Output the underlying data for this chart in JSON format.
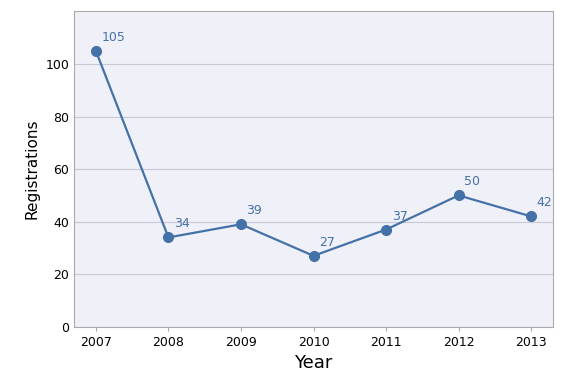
{
  "years": [
    2007,
    2008,
    2009,
    2010,
    2011,
    2012,
    2013
  ],
  "values": [
    105,
    34,
    39,
    27,
    37,
    50,
    42
  ],
  "xlabel": "Year",
  "ylabel": "Registrations",
  "ylim": [
    0,
    120
  ],
  "yticks": [
    0,
    20,
    40,
    60,
    80,
    100
  ],
  "line_color": "#4472a8",
  "marker_color": "#4472a8",
  "marker_style": "o",
  "marker_size": 7,
  "line_width": 1.6,
  "background_color": "#ffffff",
  "plot_bg_color": "#f0f0f8",
  "grid_color": "#c8c8d8",
  "annotation_color": "#4472a8",
  "annotation_fontsize": 9,
  "xlabel_fontsize": 13,
  "ylabel_fontsize": 11,
  "tick_fontsize": 9,
  "spine_color": "#aaaaaa"
}
